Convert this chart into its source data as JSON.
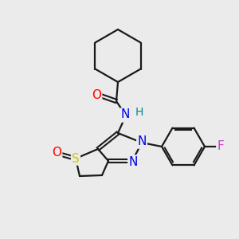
{
  "bg_color": "#ebebeb",
  "bond_color": "#1a1a1a",
  "atom_colors": {
    "O": "#ff0000",
    "N": "#0000ee",
    "S": "#cccc00",
    "F": "#cc44cc",
    "H_amide": "#008888",
    "C": "#1a1a1a"
  },
  "font_size_atom": 10,
  "figsize": [
    3.0,
    3.0
  ],
  "dpi": 100
}
